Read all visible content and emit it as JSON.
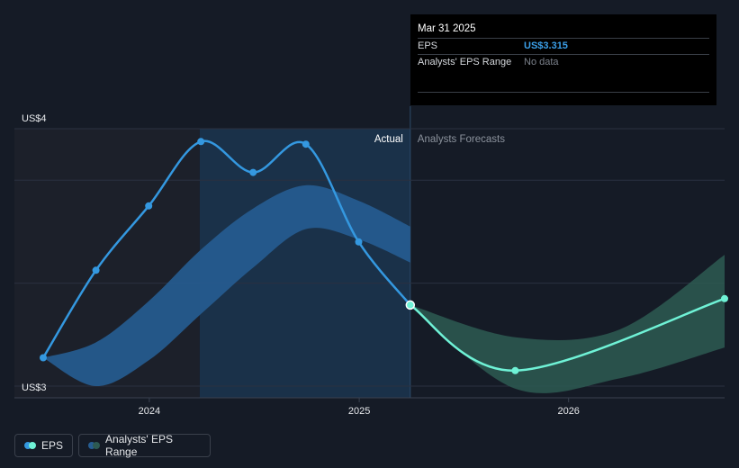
{
  "colors": {
    "background": "#151b26",
    "actual_shade": "#1a3149",
    "eps_line": "#3498e0",
    "forecast_line": "#6ff2d6",
    "actual_range_band": "#265d92",
    "forecast_range_band": "#2d5a52",
    "grid": "#2a3140"
  },
  "tooltip": {
    "date": "Mar 31 2025",
    "eps_label": "EPS",
    "eps_value": "US$3.315",
    "range_label": "Analysts' EPS Range",
    "range_value": "No data"
  },
  "labels": {
    "actual": "Actual",
    "forecasts": "Analysts Forecasts"
  },
  "legend": {
    "eps": "EPS",
    "range": "Analysts' EPS Range"
  },
  "chart_data": {
    "type": "line",
    "y_unit": "US$",
    "ylim": [
      3.0,
      4.0
    ],
    "y_ticks": [
      {
        "value": 4.0,
        "label": "US$4"
      },
      {
        "value": 3.0,
        "label": "US$3"
      }
    ],
    "x_range": [
      "2023-06-30",
      "2026-09-30"
    ],
    "x_ticks": [
      {
        "date": "2024-01-01",
        "label": "2024"
      },
      {
        "date": "2025-01-01",
        "label": "2025"
      },
      {
        "date": "2026-01-01",
        "label": "2026"
      }
    ],
    "actual_end": "2025-03-31",
    "series": [
      {
        "name": "EPS",
        "kind": "actual",
        "points": [
          {
            "x": "2023-06-30",
            "y": 3.11
          },
          {
            "x": "2023-09-30",
            "y": 3.45
          },
          {
            "x": "2023-12-31",
            "y": 3.7
          },
          {
            "x": "2024-03-31",
            "y": 3.95
          },
          {
            "x": "2024-06-30",
            "y": 3.83
          },
          {
            "x": "2024-09-30",
            "y": 3.94
          },
          {
            "x": "2024-12-31",
            "y": 3.56
          },
          {
            "x": "2025-03-31",
            "y": 3.315
          }
        ]
      },
      {
        "name": "EPS",
        "kind": "forecast",
        "points": [
          {
            "x": "2025-03-31",
            "y": 3.315
          },
          {
            "x": "2025-09-30",
            "y": 3.06
          },
          {
            "x": "2026-09-30",
            "y": 3.34
          }
        ]
      }
    ],
    "ranges": [
      {
        "name": "Analysts' EPS Range",
        "kind": "actual",
        "points": [
          {
            "x": "2023-06-30",
            "low": 3.11,
            "high": 3.11
          },
          {
            "x": "2023-09-30",
            "low": 3.0,
            "high": 3.17
          },
          {
            "x": "2023-12-31",
            "low": 3.1,
            "high": 3.33
          },
          {
            "x": "2024-03-31",
            "low": 3.28,
            "high": 3.53
          },
          {
            "x": "2024-06-30",
            "low": 3.46,
            "high": 3.69
          },
          {
            "x": "2024-09-30",
            "low": 3.61,
            "high": 3.78
          },
          {
            "x": "2024-12-31",
            "low": 3.57,
            "high": 3.72
          },
          {
            "x": "2025-03-31",
            "low": 3.48,
            "high": 3.62
          }
        ]
      },
      {
        "name": "Analysts' EPS Range",
        "kind": "forecast",
        "points": [
          {
            "x": "2025-03-31",
            "low": 3.315,
            "high": 3.315
          },
          {
            "x": "2025-09-30",
            "low": 2.99,
            "high": 3.19
          },
          {
            "x": "2026-03-31",
            "low": 3.03,
            "high": 3.22
          },
          {
            "x": "2026-09-30",
            "low": 3.15,
            "high": 3.51
          }
        ]
      }
    ]
  }
}
